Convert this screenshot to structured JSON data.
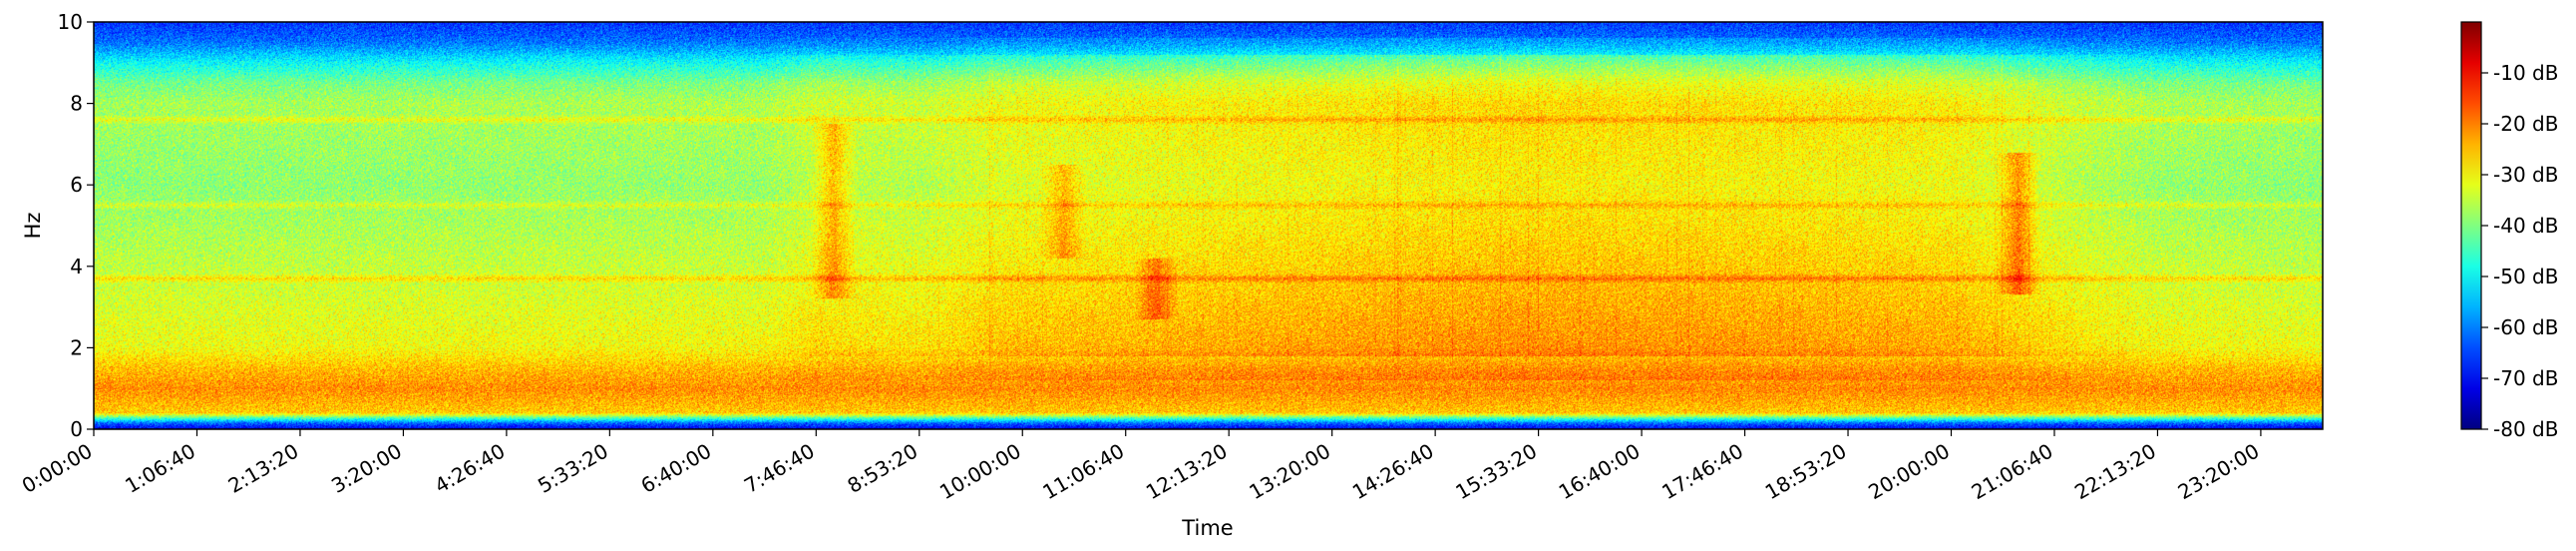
{
  "chart_data": {
    "type": "heatmap",
    "subtype": "spectrogram",
    "xlabel": "Time",
    "ylabel": "Hz",
    "x_unit": "seconds since 0:00:00",
    "x_range": [
      0,
      86400
    ],
    "x_ticks": [
      {
        "value": 0,
        "label": "0:00:00"
      },
      {
        "value": 4000,
        "label": "1:06:40"
      },
      {
        "value": 8000,
        "label": "2:13:20"
      },
      {
        "value": 12000,
        "label": "3:20:00"
      },
      {
        "value": 16000,
        "label": "4:26:40"
      },
      {
        "value": 20000,
        "label": "5:33:20"
      },
      {
        "value": 24000,
        "label": "6:40:00"
      },
      {
        "value": 28000,
        "label": "7:46:40"
      },
      {
        "value": 32000,
        "label": "8:53:20"
      },
      {
        "value": 36000,
        "label": "10:00:00"
      },
      {
        "value": 40000,
        "label": "11:06:40"
      },
      {
        "value": 44000,
        "label": "12:13:20"
      },
      {
        "value": 48000,
        "label": "13:20:00"
      },
      {
        "value": 52000,
        "label": "14:26:40"
      },
      {
        "value": 56000,
        "label": "15:33:20"
      },
      {
        "value": 60000,
        "label": "16:40:00"
      },
      {
        "value": 64000,
        "label": "17:46:40"
      },
      {
        "value": 68000,
        "label": "18:53:20"
      },
      {
        "value": 72000,
        "label": "20:00:00"
      },
      {
        "value": 76000,
        "label": "21:06:40"
      },
      {
        "value": 80000,
        "label": "22:13:20"
      },
      {
        "value": 84000,
        "label": "23:20:00"
      }
    ],
    "ylim": [
      0,
      10
    ],
    "y_ticks": [
      {
        "value": 0,
        "label": "0"
      },
      {
        "value": 2,
        "label": "2"
      },
      {
        "value": 4,
        "label": "4"
      },
      {
        "value": 6,
        "label": "6"
      },
      {
        "value": 8,
        "label": "8"
      },
      {
        "value": 10,
        "label": "10"
      }
    ],
    "colorbar": {
      "colormap": "jet",
      "range_db": [
        -80,
        0
      ],
      "ticks": [
        {
          "value": -80,
          "label": "-80 dB"
        },
        {
          "value": -70,
          "label": "-70 dB"
        },
        {
          "value": -60,
          "label": "-60 dB"
        },
        {
          "value": -50,
          "label": "-50 dB"
        },
        {
          "value": -40,
          "label": "-40 dB"
        },
        {
          "value": -30,
          "label": "-30 dB"
        },
        {
          "value": -20,
          "label": "-20 dB"
        },
        {
          "value": -10,
          "label": "-10 dB"
        }
      ]
    },
    "frequency_profile_db": [
      {
        "hz": 0.0,
        "db": -72
      },
      {
        "hz": 0.15,
        "db": -62
      },
      {
        "hz": 0.4,
        "db": -26
      },
      {
        "hz": 1.0,
        "db": -21
      },
      {
        "hz": 1.5,
        "db": -25
      },
      {
        "hz": 2.0,
        "db": -31
      },
      {
        "hz": 3.0,
        "db": -33
      },
      {
        "hz": 4.0,
        "db": -35
      },
      {
        "hz": 5.0,
        "db": -37
      },
      {
        "hz": 6.0,
        "db": -39
      },
      {
        "hz": 7.0,
        "db": -38
      },
      {
        "hz": 8.0,
        "db": -37
      },
      {
        "hz": 8.5,
        "db": -41
      },
      {
        "hz": 9.0,
        "db": -50
      },
      {
        "hz": 9.5,
        "db": -61
      },
      {
        "hz": 10.0,
        "db": -66
      }
    ],
    "harmonic_bands": [
      {
        "hz": 3.7,
        "boost_db": 7
      },
      {
        "hz": 5.5,
        "boost_db": 5
      },
      {
        "hz": 7.6,
        "boost_db": 6
      }
    ],
    "activity_profile": [
      {
        "t": 0,
        "boost_db": 0
      },
      {
        "t": 26000,
        "boost_db": 1
      },
      {
        "t": 28000,
        "boost_db": 4
      },
      {
        "t": 32000,
        "boost_db": 3
      },
      {
        "t": 35000,
        "boost_db": 6
      },
      {
        "t": 45000,
        "boost_db": 8
      },
      {
        "t": 55000,
        "boost_db": 10
      },
      {
        "t": 65000,
        "boost_db": 9
      },
      {
        "t": 72000,
        "boost_db": 8
      },
      {
        "t": 77000,
        "boost_db": 3
      },
      {
        "t": 80000,
        "boost_db": 1
      },
      {
        "t": 86400,
        "boost_db": 0
      }
    ],
    "hotspots": [
      {
        "t": 28700,
        "hz_range": [
          3.2,
          7.5
        ],
        "boost_db": 10
      },
      {
        "t": 37600,
        "hz_range": [
          4.2,
          6.5
        ],
        "boost_db": 8
      },
      {
        "t": 41200,
        "hz_range": [
          2.7,
          4.2
        ],
        "boost_db": 9
      },
      {
        "t": 74600,
        "hz_range": [
          3.3,
          6.8
        ],
        "boost_db": 12
      }
    ]
  }
}
